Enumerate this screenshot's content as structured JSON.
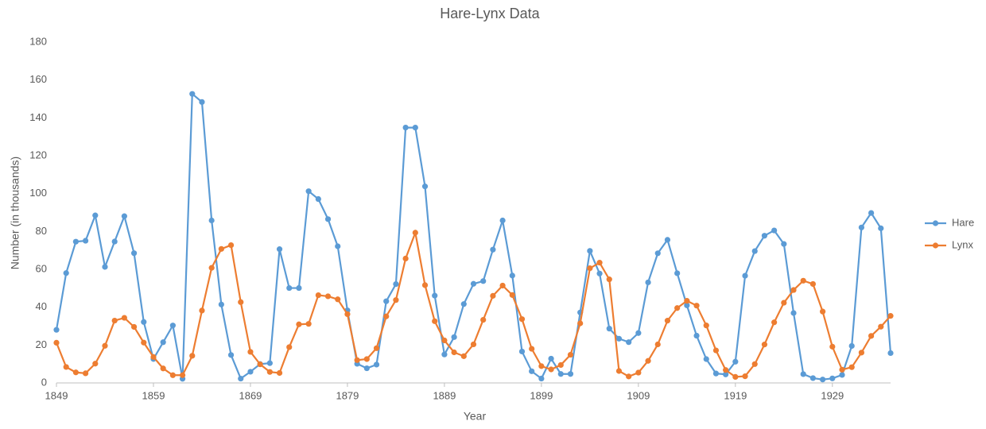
{
  "chart_data": {
    "type": "line",
    "title": "Hare-Lynx Data",
    "xlabel": "Year",
    "ylabel": "Number (in thousands)",
    "x": [
      1849,
      1850,
      1851,
      1852,
      1853,
      1854,
      1855,
      1856,
      1857,
      1858,
      1859,
      1860,
      1861,
      1862,
      1863,
      1864,
      1865,
      1866,
      1867,
      1868,
      1869,
      1870,
      1871,
      1872,
      1873,
      1874,
      1875,
      1876,
      1877,
      1878,
      1879,
      1880,
      1881,
      1882,
      1883,
      1884,
      1885,
      1886,
      1887,
      1888,
      1889,
      1890,
      1891,
      1892,
      1893,
      1894,
      1895,
      1896,
      1897,
      1898,
      1899,
      1900,
      1901,
      1902,
      1903,
      1904,
      1905,
      1906,
      1907,
      1908,
      1909,
      1910,
      1911,
      1912,
      1913,
      1914,
      1915,
      1916,
      1917,
      1918,
      1919,
      1920,
      1921,
      1922,
      1923,
      1924,
      1925,
      1926,
      1927,
      1928,
      1929,
      1930,
      1931,
      1932,
      1933,
      1934,
      1935
    ],
    "series": [
      {
        "name": "Hare",
        "color": "#5b9bd5",
        "values": [
          28.04,
          58,
          74.6,
          75.09,
          88.48,
          61.28,
          74.67,
          88.06,
          68.51,
          32.19,
          12.64,
          21.49,
          30.35,
          2.18,
          152.65,
          148.36,
          85.81,
          41.41,
          14.75,
          2.28,
          5.91,
          9.95,
          10.44,
          70.64,
          50.12,
          50.13,
          101.25,
          97.12,
          86.51,
          72.17,
          38.32,
          10.11,
          7.74,
          9.67,
          43.12,
          52.21,
          134.85,
          134.86,
          103.79,
          46.1,
          15.03,
          24.2,
          41.65,
          52.34,
          53.78,
          70.4,
          85.81,
          56.69,
          16.59,
          6.16,
          2.3,
          12.82,
          4.72,
          4.73,
          37.22,
          69.72,
          57.78,
          28.68,
          23.37,
          21.54,
          26.34,
          53.1,
          68.48,
          75.58,
          57.92,
          40.97,
          24.95,
          12.59,
          4.97,
          4.5,
          11.21,
          56.6,
          69.63,
          77.74,
          80.53,
          73.38,
          36.93,
          4.64,
          2.54,
          1.8,
          2.39,
          4.23,
          19.52,
          82.11,
          89.76,
          81.66,
          15.76
        ]
      },
      {
        "name": "Lynx",
        "color": "#ed7d31",
        "values": [
          21.23,
          8.42,
          5.56,
          5.08,
          10.17,
          19.6,
          32.91,
          34.38,
          29.59,
          21.3,
          13.69,
          7.65,
          4.08,
          4.09,
          14.33,
          38.22,
          60.78,
          70.77,
          72.77,
          42.68,
          16.39,
          9.83,
          5.8,
          5.26,
          18.91,
          30.95,
          31.18,
          46.34,
          45.77,
          44.15,
          36.33,
          12.03,
          12.6,
          18.34,
          35.14,
          43.77,
          65.69,
          79.35,
          51.65,
          32.59,
          22.45,
          16.16,
          14.12,
          20.38,
          33.33,
          46.0,
          51.41,
          46.43,
          33.68,
          18.01,
          8.86,
          7.13,
          9.47,
          14.86,
          31.47,
          60.57,
          63.51,
          54.7,
          6.3,
          3.41,
          5.44,
          11.65,
          20.35,
          32.88,
          39.55,
          43.36,
          40.83,
          30.36,
          17.18,
          6.82,
          3.19,
          3.52,
          9.94,
          20.3,
          31.99,
          42.36,
          49.08,
          53.99,
          52.25,
          37.7,
          19.14,
          6.98,
          8.31,
          16.01,
          24.82,
          29.7,
          35.4
        ]
      }
    ],
    "xlim": [
      1849,
      1935
    ],
    "xticks": [
      1849,
      1859,
      1869,
      1879,
      1889,
      1899,
      1909,
      1919,
      1929
    ],
    "ylim": [
      0,
      180
    ],
    "yticks": [
      0,
      20,
      40,
      60,
      80,
      100,
      120,
      140,
      160,
      180
    ],
    "legend": "right"
  }
}
